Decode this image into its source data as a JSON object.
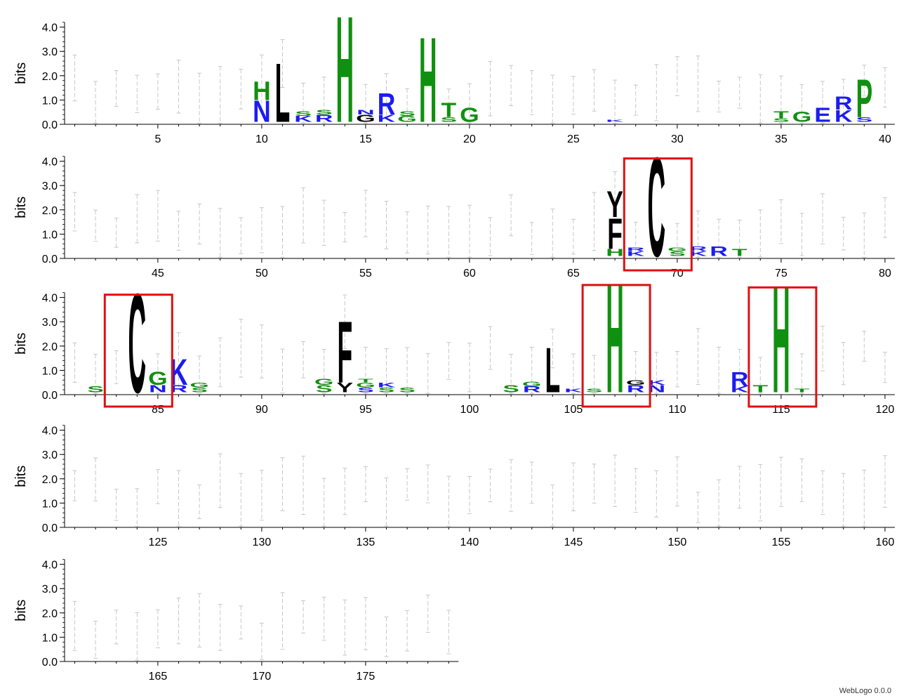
{
  "chart_data": {
    "type": "sequence-logo",
    "ylabel": "bits",
    "yticks": [
      "0.0",
      "1.0",
      "2.0",
      "3.0",
      "4.0"
    ],
    "ymax": 4.32,
    "positions_per_row": 40,
    "rows": [
      {
        "start": 1,
        "end": 40,
        "xticks": [
          "5",
          "10",
          "15",
          "20",
          "25",
          "30",
          "35",
          "40"
        ]
      },
      {
        "start": 41,
        "end": 80,
        "xticks": [
          "45",
          "50",
          "55",
          "60",
          "65",
          "70",
          "75",
          "80"
        ]
      },
      {
        "start": 81,
        "end": 120,
        "xticks": [
          "85",
          "90",
          "95",
          "100",
          "105",
          "110",
          "115",
          "120"
        ]
      },
      {
        "start": 121,
        "end": 160,
        "xticks": [
          "125",
          "130",
          "135",
          "140",
          "145",
          "150",
          "155",
          "160"
        ]
      },
      {
        "start": 161,
        "end": 179,
        "xticks": [
          "165",
          "170",
          "175"
        ]
      }
    ],
    "colors": {
      "black": "#000000",
      "green": "#109010",
      "blue": "#1c1cf0",
      "errorbar": "#c8c8c8",
      "highlight": "#e01010"
    },
    "stacks": [
      {
        "pos": 10,
        "letters": [
          {
            "c": "N",
            "h": 0.9,
            "col": "blue"
          },
          {
            "c": "H",
            "h": 0.8,
            "col": "green"
          }
        ]
      },
      {
        "pos": 11,
        "letters": [
          {
            "c": "L",
            "h": 2.5,
            "col": "black"
          }
        ]
      },
      {
        "pos": 12,
        "letters": [
          {
            "c": "K",
            "h": 0.25,
            "col": "blue"
          },
          {
            "c": "S",
            "h": 0.2,
            "col": "green"
          }
        ]
      },
      {
        "pos": 13,
        "letters": [
          {
            "c": "R",
            "h": 0.3,
            "col": "blue"
          },
          {
            "c": "S",
            "h": 0.2,
            "col": "green"
          }
        ]
      },
      {
        "pos": 14,
        "letters": [
          {
            "c": "H",
            "h": 4.5,
            "col": "green"
          }
        ]
      },
      {
        "pos": 15,
        "letters": [
          {
            "c": "G",
            "h": 0.3,
            "col": "black"
          },
          {
            "c": "N",
            "h": 0.2,
            "col": "blue"
          }
        ]
      },
      {
        "pos": 16,
        "letters": [
          {
            "c": "K",
            "h": 0.3,
            "col": "blue"
          },
          {
            "c": "R",
            "h": 0.9,
            "col": "blue"
          }
        ]
      },
      {
        "pos": 17,
        "letters": [
          {
            "c": "G",
            "h": 0.25,
            "col": "green"
          },
          {
            "c": "S",
            "h": 0.2,
            "col": "green"
          }
        ]
      },
      {
        "pos": 18,
        "letters": [
          {
            "c": "H",
            "h": 3.6,
            "col": "green"
          }
        ]
      },
      {
        "pos": 19,
        "letters": [
          {
            "c": "S",
            "h": 0.2,
            "col": "green"
          },
          {
            "c": "T",
            "h": 0.6,
            "col": "green"
          }
        ]
      },
      {
        "pos": 20,
        "letters": [
          {
            "c": "G",
            "h": 0.6,
            "col": "green"
          }
        ]
      },
      {
        "pos": 27,
        "letters": [
          {
            "c": "K",
            "h": 0.1,
            "col": "blue"
          }
        ]
      },
      {
        "pos": 35,
        "letters": [
          {
            "c": "S",
            "h": 0.15,
            "col": "green"
          },
          {
            "c": "T",
            "h": 0.3,
            "col": "green"
          }
        ]
      },
      {
        "pos": 36,
        "letters": [
          {
            "c": "G",
            "h": 0.45,
            "col": "green"
          }
        ]
      },
      {
        "pos": 37,
        "letters": [
          {
            "c": "E",
            "h": 0.6,
            "col": "blue"
          }
        ]
      },
      {
        "pos": 38,
        "letters": [
          {
            "c": "K",
            "h": 0.5,
            "col": "blue"
          },
          {
            "c": "R",
            "h": 0.55,
            "col": "blue"
          }
        ]
      },
      {
        "pos": 39,
        "letters": [
          {
            "c": "S",
            "h": 0.2,
            "col": "blue"
          },
          {
            "c": "P",
            "h": 1.6,
            "col": "green"
          }
        ]
      },
      {
        "pos": 67,
        "letters": [
          {
            "c": "H",
            "h": 0.3,
            "col": "green"
          },
          {
            "c": "F",
            "h": 1.3,
            "col": "black"
          },
          {
            "c": "Y",
            "h": 1.1,
            "col": "black"
          }
        ]
      },
      {
        "pos": 68,
        "letters": [
          {
            "c": "K",
            "h": 0.2,
            "col": "blue"
          },
          {
            "c": "R",
            "h": 0.15,
            "col": "blue"
          }
        ]
      },
      {
        "pos": 69,
        "letters": [
          {
            "c": "C",
            "h": 4.2,
            "col": "black"
          }
        ]
      },
      {
        "pos": 70,
        "letters": [
          {
            "c": "S",
            "h": 0.2,
            "col": "green"
          },
          {
            "c": "G",
            "h": 0.15,
            "col": "green"
          }
        ]
      },
      {
        "pos": 71,
        "letters": [
          {
            "c": "K",
            "h": 0.2,
            "col": "blue"
          },
          {
            "c": "R",
            "h": 0.2,
            "col": "blue"
          }
        ]
      },
      {
        "pos": 72,
        "letters": [
          {
            "c": "R",
            "h": 0.4,
            "col": "blue"
          }
        ]
      },
      {
        "pos": 73,
        "letters": [
          {
            "c": "T",
            "h": 0.3,
            "col": "green"
          }
        ]
      },
      {
        "pos": 82,
        "letters": [
          {
            "c": "S",
            "h": 0.25,
            "col": "green"
          }
        ]
      },
      {
        "pos": 84,
        "letters": [
          {
            "c": "C",
            "h": 4.2,
            "col": "black"
          }
        ]
      },
      {
        "pos": 85,
        "letters": [
          {
            "c": "N",
            "h": 0.3,
            "col": "blue"
          },
          {
            "c": "G",
            "h": 0.55,
            "col": "green"
          }
        ]
      },
      {
        "pos": 86,
        "letters": [
          {
            "c": "R",
            "h": 0.3,
            "col": "blue"
          },
          {
            "c": "K",
            "h": 1.1,
            "col": "blue"
          }
        ]
      },
      {
        "pos": 87,
        "letters": [
          {
            "c": "S",
            "h": 0.2,
            "col": "green"
          },
          {
            "c": "G",
            "h": 0.2,
            "col": "green"
          }
        ]
      },
      {
        "pos": 93,
        "letters": [
          {
            "c": "S",
            "h": 0.3,
            "col": "green"
          },
          {
            "c": "G",
            "h": 0.25,
            "col": "green"
          }
        ]
      },
      {
        "pos": 94,
        "letters": [
          {
            "c": "Y",
            "h": 0.4,
            "col": "black"
          },
          {
            "c": "F",
            "h": 2.6,
            "col": "black"
          }
        ]
      },
      {
        "pos": 95,
        "letters": [
          {
            "c": "S",
            "h": 0.2,
            "col": "blue"
          },
          {
            "c": "G",
            "h": 0.2,
            "col": "green"
          },
          {
            "c": "T",
            "h": 0.15,
            "col": "green"
          }
        ]
      },
      {
        "pos": 96,
        "letters": [
          {
            "c": "S",
            "h": 0.2,
            "col": "green"
          },
          {
            "c": "K",
            "h": 0.2,
            "col": "blue"
          }
        ]
      },
      {
        "pos": 97,
        "letters": [
          {
            "c": "S",
            "h": 0.2,
            "col": "green"
          }
        ]
      },
      {
        "pos": 102,
        "letters": [
          {
            "c": "S",
            "h": 0.3,
            "col": "green"
          }
        ]
      },
      {
        "pos": 103,
        "letters": [
          {
            "c": "R",
            "h": 0.25,
            "col": "blue"
          },
          {
            "c": "G",
            "h": 0.2,
            "col": "green"
          }
        ]
      },
      {
        "pos": 104,
        "letters": [
          {
            "c": "L",
            "h": 1.9,
            "col": "black"
          }
        ]
      },
      {
        "pos": 105,
        "letters": [
          {
            "c": "K",
            "h": 0.15,
            "col": "blue"
          }
        ]
      },
      {
        "pos": 106,
        "letters": [
          {
            "c": "S",
            "h": 0.15,
            "col": "green"
          }
        ]
      },
      {
        "pos": 107,
        "letters": [
          {
            "c": "H",
            "h": 4.6,
            "col": "green"
          }
        ]
      },
      {
        "pos": 108,
        "letters": [
          {
            "c": "R",
            "h": 0.3,
            "col": "blue"
          },
          {
            "c": "G",
            "h": 0.2,
            "col": "black"
          }
        ]
      },
      {
        "pos": 109,
        "letters": [
          {
            "c": "N",
            "h": 0.3,
            "col": "blue"
          },
          {
            "c": "K",
            "h": 0.2,
            "col": "blue"
          }
        ]
      },
      {
        "pos": 113,
        "letters": [
          {
            "c": "K",
            "h": 0.25,
            "col": "blue"
          },
          {
            "c": "R",
            "h": 0.6,
            "col": "blue"
          }
        ]
      },
      {
        "pos": 114,
        "letters": [
          {
            "c": "T",
            "h": 0.3,
            "col": "green"
          }
        ]
      },
      {
        "pos": 115,
        "letters": [
          {
            "c": "H",
            "h": 4.5,
            "col": "green"
          }
        ]
      },
      {
        "pos": 116,
        "letters": [
          {
            "c": "T",
            "h": 0.15,
            "col": "green"
          }
        ]
      }
    ],
    "highlighted_stacks": [
      69,
      84,
      107,
      115
    ],
    "credit": "WebLogo 0.0.0"
  }
}
